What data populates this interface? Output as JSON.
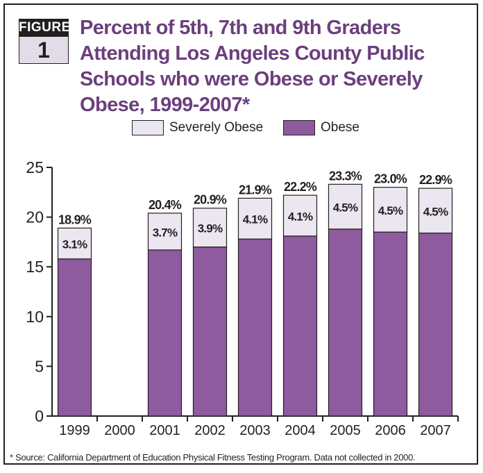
{
  "figure": {
    "word": "FIGURE",
    "number": "1"
  },
  "title": "Percent of 5th, 7th and 9th Graders Attending Los Angeles County Public Schools who were Obese or Severely Obese, 1999-2007*",
  "footnote": "* Source: California Department of Education Physical Fitness Testing Program. Data not collected in 2000.",
  "colors": {
    "obese": "#8e5b9e",
    "severely_obese": "#ece6f0",
    "outline": "#231f20",
    "title": "#6b3f7d"
  },
  "chart_data": {
    "type": "bar",
    "stacked": true,
    "categories": [
      "1999",
      "2000",
      "2001",
      "2002",
      "2003",
      "2004",
      "2005",
      "2006",
      "2007"
    ],
    "series": [
      {
        "name": "Obese",
        "values": [
          15.8,
          null,
          16.7,
          17.0,
          17.8,
          18.1,
          18.8,
          18.5,
          18.4
        ]
      },
      {
        "name": "Severely Obese",
        "values": [
          3.1,
          null,
          3.7,
          3.9,
          4.1,
          4.1,
          4.5,
          4.5,
          4.5
        ]
      }
    ],
    "segment_labels": [
      "3.1%",
      "",
      "3.7%",
      "3.9%",
      "4.1%",
      "4.1%",
      "4.5%",
      "4.5%",
      "4.5%"
    ],
    "total_labels": [
      "18.9%",
      "",
      "20.4%",
      "20.9%",
      "21.9%",
      "22.2%",
      "23.3%",
      "23.0%",
      "22.9%"
    ],
    "y_ticks": [
      "0",
      "5",
      "10",
      "15",
      "20",
      "25"
    ],
    "ylim": [
      0,
      25
    ],
    "grid": false,
    "legend": {
      "position": "top-center",
      "entries": [
        "Severely Obese",
        "Obese"
      ]
    }
  }
}
